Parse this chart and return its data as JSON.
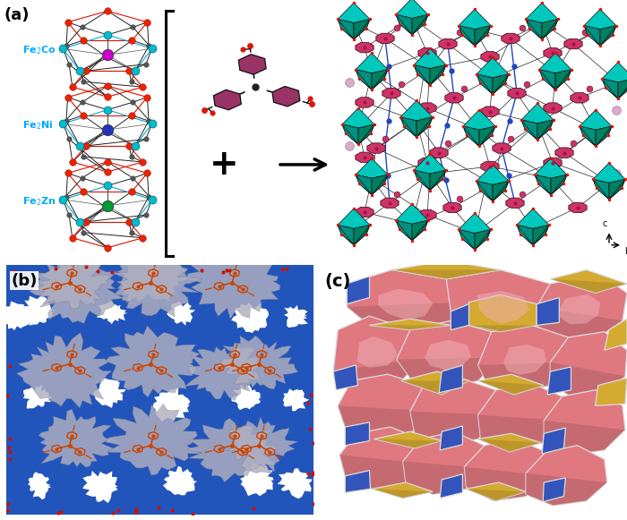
{
  "figure_width": 7.0,
  "figure_height": 5.81,
  "dpi": 100,
  "background_color": "#ffffff",
  "panel_a_label": "(a)",
  "panel_b_label": "(b)",
  "panel_c_label": "(c)",
  "label_fontsize": 13,
  "label_fontweight": "bold",
  "fe2co_label": "Fe$_2$Co",
  "fe2ni_label": "Fe$_2$Ni",
  "fe2zn_label": "Fe$_2$Zn",
  "label_color": "#00aaff",
  "co_color": "#cc00cc",
  "ni_color": "#2233bb",
  "zn_color": "#009933",
  "fe_color": "#dd1100",
  "c_color": "#555555",
  "o_color": "#ee2200",
  "bond_cyan": "#00bbcc",
  "teal_light": "#00c8bc",
  "teal_dark": "#008060",
  "pink_node": "#cc3366",
  "pink_ring": "#bb4466",
  "blue_b": "#2244bb",
  "panel_b_blue": "#2255cc",
  "gray_channel": "#aaaabc",
  "orange_mol": "#cc4400",
  "pink_c": "#e07880",
  "yellow_c": "#d4aa30",
  "blue_c": "#3355bb",
  "white_edge": "#dddddd"
}
